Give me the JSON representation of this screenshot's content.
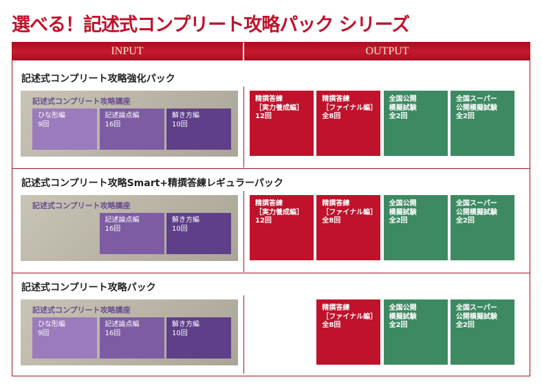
{
  "header": {
    "title": "選べる！記述式コンプリート攻略パック シリーズ",
    "columns": [
      "INPUT",
      "OUTPUT"
    ]
  },
  "packs": [
    {
      "title": "記述式コンプリート攻略強化パック",
      "input": {
        "label": "記述式コンプリート攻略講座",
        "boxes": [
          {
            "lines": [
              "ひな形編",
              "9回"
            ]
          },
          {
            "lines": [
              "記述論点編",
              "16回"
            ]
          },
          {
            "lines": [
              "解き方編",
              "10回"
            ]
          }
        ]
      },
      "output": [
        {
          "lines": [
            "精撰答練",
            "［実力養成編］",
            "12回"
          ]
        },
        {
          "lines": [
            "精撰答練",
            "［ファイナル編］",
            "全8回"
          ]
        },
        {
          "lines": [
            "全国公開",
            "模擬試験",
            "全2回"
          ]
        },
        {
          "lines": [
            "全国スーパー",
            "公開模擬試験",
            "全2回"
          ]
        }
      ]
    },
    {
      "title": "記述式コンプリート攻略Smart+精撰答練レギュラーパック",
      "input": {
        "label": "記述式コンプリート攻略講座",
        "boxes": [
          {
            "lines": [
              "記述論点編",
              "16回"
            ]
          },
          {
            "lines": [
              "解き方編",
              "10回"
            ]
          }
        ]
      },
      "output": [
        {
          "lines": [
            "精撰答練",
            "［実力養成編］",
            "12回"
          ]
        },
        {
          "lines": [
            "精撰答練",
            "［ファイナル編］",
            "全8回"
          ]
        },
        {
          "lines": [
            "全国公開",
            "模擬試験",
            "全2回"
          ]
        },
        {
          "lines": [
            "全国スーパー",
            "公開模擬試験",
            "全2回"
          ]
        }
      ]
    },
    {
      "title": "記述式コンプリート攻略パック",
      "input": {
        "label": "記述式コンプリート攻略講座",
        "boxes": [
          {
            "lines": [
              "ひな形編",
              "9回"
            ]
          },
          {
            "lines": [
              "記述論点編",
              "16回"
            ]
          },
          {
            "lines": [
              "解き方編",
              "10回"
            ]
          }
        ]
      },
      "output": [
        {
          "lines": [
            "精撰答練",
            "［ファイナル編］",
            "全8回"
          ]
        },
        {
          "lines": [
            "全国公開",
            "模擬試験",
            "全2回"
          ]
        },
        {
          "lines": [
            "全国スーパー",
            "公開模擬試験",
            "全2回"
          ]
        }
      ]
    }
  ]
}
